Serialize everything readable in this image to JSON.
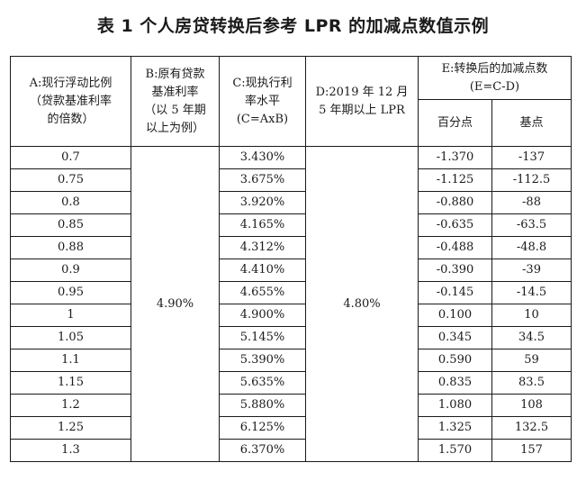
{
  "title": "表 1 个人房贷转换后参考 LPR 的加减点数值示例",
  "headers": {
    "a": [
      "A:现行浮动比例",
      "（贷款基准利率",
      "的倍数）"
    ],
    "b": [
      "B:原有贷款",
      "基准利率",
      "（以 5 年期",
      "以上为例）"
    ],
    "c": [
      "C:现执行利",
      "率水平",
      "(C=AxB)"
    ],
    "d": [
      "D:2019 年 12 月",
      "5 年期以上 LPR"
    ],
    "e": [
      "E:转换后的加减点数",
      "(E=C-D)"
    ],
    "e_sub": [
      "百分点",
      "基点"
    ]
  },
  "b_value": "4.90%",
  "d_value": "4.80%",
  "rows": [
    {
      "a": "0.7",
      "c": "3.430%",
      "pct": "-1.370",
      "bp": "-137"
    },
    {
      "a": "0.75",
      "c": "3.675%",
      "pct": "-1.125",
      "bp": "-112.5"
    },
    {
      "a": "0.8",
      "c": "3.920%",
      "pct": "-0.880",
      "bp": "-88"
    },
    {
      "a": "0.85",
      "c": "4.165%",
      "pct": "-0.635",
      "bp": "-63.5"
    },
    {
      "a": "0.88",
      "c": "4.312%",
      "pct": "-0.488",
      "bp": "-48.8"
    },
    {
      "a": "0.9",
      "c": "4.410%",
      "pct": "-0.390",
      "bp": "-39"
    },
    {
      "a": "0.95",
      "c": "4.655%",
      "pct": "-0.145",
      "bp": "-14.5"
    },
    {
      "a": "1",
      "c": "4.900%",
      "pct": "0.100",
      "bp": "10"
    },
    {
      "a": "1.05",
      "c": "5.145%",
      "pct": "0.345",
      "bp": "34.5"
    },
    {
      "a": "1.1",
      "c": "5.390%",
      "pct": "0.590",
      "bp": "59"
    },
    {
      "a": "1.15",
      "c": "5.635%",
      "pct": "0.835",
      "bp": "83.5"
    },
    {
      "a": "1.2",
      "c": "5.880%",
      "pct": "1.080",
      "bp": "108"
    },
    {
      "a": "1.25",
      "c": "6.125%",
      "pct": "1.325",
      "bp": "132.5"
    },
    {
      "a": "1.3",
      "c": "6.370%",
      "pct": "1.570",
      "bp": "157"
    }
  ]
}
